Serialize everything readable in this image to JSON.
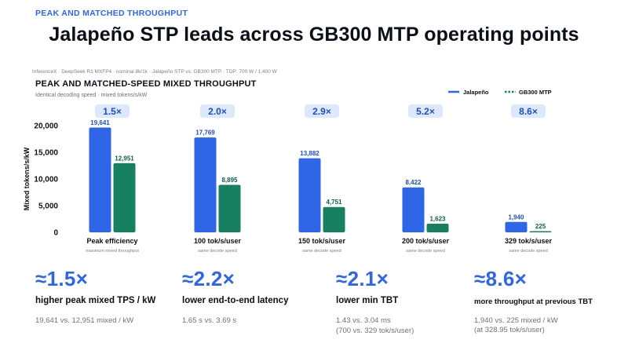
{
  "header": {
    "eyebrow": "PEAK AND MATCHED THROUGHPUT",
    "headline": "Jalapeño STP leads across GB300 MTP operating points"
  },
  "source_line": "InferenceX · DeepSeek R1 MXFP4 · nominal 8k/1k · Jalapeño STP vs. GB300 MTP · TDP: 700 W / 1,400 W",
  "colors": {
    "jalapeno": "#2f66e8",
    "gb300": "#178061",
    "accent": "#2f66e8",
    "ratio_badge_bg": "#dde8fb",
    "ratio_badge_text": "#1f4fb8"
  },
  "chart_data": {
    "type": "bar",
    "title": "PEAK AND MATCHED-SPEED MIXED THROUGHPUT",
    "subtitle": "Identical decoding speed · mixed tokens/s/kW",
    "ylabel": "Mixed tokens/s/kW",
    "ylim": [
      0,
      20000
    ],
    "yticks": [
      0,
      5000,
      10000,
      15000,
      20000
    ],
    "ytick_labels": [
      "0",
      "5,000",
      "10,000",
      "15,000",
      "20,000"
    ],
    "legend_position": "top-right",
    "categories": [
      "Peak efficiency",
      "100 tok/s/user",
      "150 tok/s/user",
      "200 tok/s/user",
      "329 tok/s/user"
    ],
    "category_notes": [
      "maximum mixed throughput",
      "same decode speed",
      "same decode speed",
      "same decode speed",
      "same decode speed"
    ],
    "ratios": [
      "1.5×",
      "2.0×",
      "2.9×",
      "5.2×",
      "8.6×"
    ],
    "series": [
      {
        "name": "Jalapeño",
        "legend_style": "solid",
        "values": [
          19641,
          17769,
          13882,
          8422,
          1940
        ],
        "labels": [
          "19,641",
          "17,769",
          "13,882",
          "8,422",
          "1,940"
        ]
      },
      {
        "name": "GB300 MTP",
        "legend_style": "dashed",
        "values": [
          12951,
          8895,
          4751,
          1623,
          225
        ],
        "labels": [
          "12,951",
          "8,895",
          "4,751",
          "1,623",
          "225"
        ]
      }
    ]
  },
  "stats": [
    {
      "big": "≈1.5×",
      "desc": "higher peak mixed TPS / kW",
      "detail": "19,641 vs. 12,951 mixed / kW"
    },
    {
      "big": "≈2.2×",
      "desc": "lower end-to-end latency",
      "detail": "1.65 s vs. 3.69 s"
    },
    {
      "big": "≈2.1×",
      "desc": "lower min TBT",
      "detail": "1.43 vs. 3.04 ms\n(700 vs. 329 tok/s/user)"
    },
    {
      "big": "≈8.6×",
      "desc": "more throughput at previous TBT",
      "detail": "1,940 vs. 225 mixed / kW\n(at 328.95 tok/s/user)"
    }
  ]
}
